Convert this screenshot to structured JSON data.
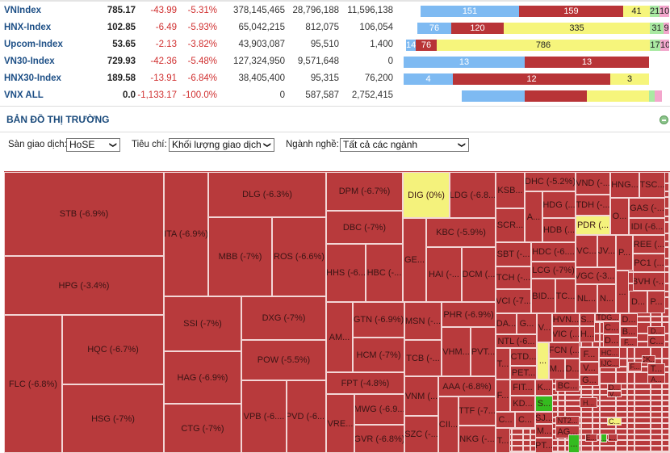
{
  "indices": [
    {
      "name": "VNIndex",
      "value": "785.17",
      "change": "-43.99",
      "pct": "-5.31%",
      "vol1": "378,145,465",
      "vol2": "28,796,188",
      "vol3": "11,596,138",
      "bars": [
        "151",
        "159",
        "41",
        "21",
        "10"
      ]
    },
    {
      "name": "HNX-Index",
      "value": "102.85",
      "change": "-6.49",
      "pct": "-5.93%",
      "vol1": "65,042,215",
      "vol2": "812,075",
      "vol3": "106,054",
      "bars": [
        "76",
        "120",
        "335",
        "31",
        "9"
      ]
    },
    {
      "name": "Upcom-Index",
      "value": "53.65",
      "change": "-2.13",
      "pct": "-3.82%",
      "vol1": "43,903,087",
      "vol2": "95,510",
      "vol3": "1,400",
      "bars": [
        "14",
        "76",
        "786",
        "17",
        "10"
      ]
    },
    {
      "name": "VN30-Index",
      "value": "729.93",
      "change": "-42.36",
      "pct": "-5.48%",
      "vol1": "127,324,950",
      "vol2": "9,571,648",
      "vol3": "0",
      "bars": [
        "13",
        "13"
      ]
    },
    {
      "name": "HNX30-Index",
      "value": "189.58",
      "change": "-13.91",
      "pct": "-6.84%",
      "vol1": "38,405,400",
      "vol2": "95,315",
      "vol3": "76,200",
      "bars": [
        "4",
        "12",
        "3"
      ]
    },
    {
      "name": "VNX ALL",
      "value": "0.0",
      "change": "-1,133.17",
      "pct": "-100.0%",
      "vol1": "0",
      "vol2": "587,587",
      "vol3": "2,752,415",
      "bars": [
        "",
        "",
        "",
        "",
        ""
      ]
    }
  ],
  "bar_colors": {
    "ceiling": "#f3a6cc",
    "up": "#a9e9a2",
    "unchanged": "#f6f57c",
    "down": "#b83437",
    "floor": "#7ebaf2"
  },
  "section": {
    "title": "BẢN ĐỒ THỊ TRƯỜNG",
    "collapse_icon": "minus-circle-icon"
  },
  "filters": {
    "exchange_label": "Sàn giao dịch:",
    "exchange_value": "HoSE",
    "criteria_label": "Tiêu chí:",
    "criteria_value": "Khối lượng giao dịch",
    "sector_label": "Ngành nghề:",
    "sector_value": "Tất cả các ngành"
  },
  "tile_colors": {
    "down": "#b83a3c",
    "flat": "#f4f27c",
    "up": "#35bb1f"
  },
  "treemap": [
    {
      "label": "STB (-6.9%)",
      "s": "down"
    },
    {
      "label": "HPG (-3.4%)",
      "s": "down"
    },
    {
      "label": "FLC (-6.8%)",
      "s": "down"
    },
    {
      "label": "HQC (-6.7%)",
      "s": "down"
    },
    {
      "label": "HSG (-7%)",
      "s": "down"
    },
    {
      "label": "ITA (-6.9%)",
      "s": "down"
    },
    {
      "label": "DLG (-6.3%)",
      "s": "down"
    },
    {
      "label": "MBB (-7%)",
      "s": "down"
    },
    {
      "label": "ROS (-6.6%)",
      "s": "down"
    },
    {
      "label": "SSI (-7%)",
      "s": "down"
    },
    {
      "label": "HAG (-6.9%)",
      "s": "down"
    },
    {
      "label": "CTG (-7%)",
      "s": "down"
    },
    {
      "label": "DXG (-7%)",
      "s": "down"
    },
    {
      "label": "POW (-5.5%)",
      "s": "down"
    },
    {
      "label": "VPB (-6....",
      "s": "down"
    },
    {
      "label": "PVD (-6....",
      "s": "down"
    },
    {
      "label": "DPM (-6.7%)",
      "s": "down"
    },
    {
      "label": "DBC (-7%)",
      "s": "down"
    },
    {
      "label": "HHS (-6...",
      "s": "down"
    },
    {
      "label": "HBC (-...",
      "s": "down"
    },
    {
      "label": "DIG (0%)",
      "s": "flat"
    },
    {
      "label": "LDG (-6.8...",
      "s": "down"
    },
    {
      "label": "GE...",
      "s": "down"
    },
    {
      "label": "KBC (-5.9%)",
      "s": "down"
    },
    {
      "label": "HAI (-...",
      "s": "down"
    },
    {
      "label": "DCM (...",
      "s": "down"
    },
    {
      "label": "AM...",
      "s": "down"
    },
    {
      "label": "GTN (-6.9%)",
      "s": "down"
    },
    {
      "label": "HCM (-7%)",
      "s": "down"
    },
    {
      "label": "FPT (-4.8%)",
      "s": "down"
    },
    {
      "label": "VRE...",
      "s": "down"
    },
    {
      "label": "MWG (-6.9...",
      "s": "down"
    },
    {
      "label": "GVR (-6.8%)",
      "s": "down"
    },
    {
      "label": "MSN (-...",
      "s": "down"
    },
    {
      "label": "TCB (-...",
      "s": "down"
    },
    {
      "label": "VNM (...",
      "s": "down"
    },
    {
      "label": "SZC (-...",
      "s": "down"
    },
    {
      "label": "PHR (-6.9%)",
      "s": "down"
    },
    {
      "label": "VHM...",
      "s": "down"
    },
    {
      "label": "PVT...",
      "s": "down"
    },
    {
      "label": "AAA (-6.8%)",
      "s": "down"
    },
    {
      "label": "CII...",
      "s": "down"
    },
    {
      "label": "TTF (-7...",
      "s": "down"
    },
    {
      "label": "NKG (-...",
      "s": "down"
    },
    {
      "label": "KSB...",
      "s": "down"
    },
    {
      "label": "SCR...",
      "s": "down"
    },
    {
      "label": "A...",
      "s": "down"
    },
    {
      "label": "DHC (-5.2%)",
      "s": "down"
    },
    {
      "label": "HDG (...",
      "s": "down"
    },
    {
      "label": "HDB (...",
      "s": "down"
    },
    {
      "label": "VND (-...",
      "s": "down"
    },
    {
      "label": "TDH (-...",
      "s": "down"
    },
    {
      "label": "PDR (...",
      "s": "flat"
    },
    {
      "label": "O...",
      "s": "down"
    },
    {
      "label": "HNG...",
      "s": "down"
    },
    {
      "label": "TSC...",
      "s": "down"
    },
    {
      "label": "GAS (-...",
      "s": "down"
    },
    {
      "label": "IDI (-6...",
      "s": "down"
    },
    {
      "label": "SBT (-...",
      "s": "down"
    },
    {
      "label": "TCH (-...",
      "s": "down"
    },
    {
      "label": "VCI (-7...",
      "s": "down"
    },
    {
      "label": "HDC (-6....",
      "s": "down"
    },
    {
      "label": "LCG (-7%)",
      "s": "down"
    },
    {
      "label": "BID...",
      "s": "down"
    },
    {
      "label": "TC...",
      "s": "down"
    },
    {
      "label": "VC...",
      "s": "down"
    },
    {
      "label": "JV...",
      "s": "down"
    },
    {
      "label": "P...",
      "s": "down"
    },
    {
      "label": "REE (...",
      "s": "down"
    },
    {
      "label": "PC1 (...",
      "s": "down"
    },
    {
      "label": "VGC (-3....",
      "s": "down"
    },
    {
      "label": "BVH (-...",
      "s": "down"
    },
    {
      "label": "NL...",
      "s": "down"
    },
    {
      "label": "N...",
      "s": "down"
    },
    {
      "label": "...",
      "s": "down"
    },
    {
      "label": "D...",
      "s": "down"
    },
    {
      "label": "P...",
      "s": "down"
    },
    {
      "label": "DA...",
      "s": "down"
    },
    {
      "label": "G...",
      "s": "down"
    },
    {
      "label": "V...",
      "s": "down"
    },
    {
      "label": "HVN...",
      "s": "down"
    },
    {
      "label": "VIC (...",
      "s": "down"
    },
    {
      "label": "NTL (-6...",
      "s": "down"
    },
    {
      "label": "...",
      "s": "flat"
    },
    {
      "label": "FCN (...",
      "s": "down"
    },
    {
      "label": "CTD...",
      "s": "down"
    },
    {
      "label": "PET...",
      "s": "down"
    },
    {
      "label": "T...",
      "s": "down"
    },
    {
      "label": "M...",
      "s": "down"
    },
    {
      "label": "D...",
      "s": "down"
    },
    {
      "label": "F...",
      "s": "down"
    },
    {
      "label": "FIT...",
      "s": "down"
    },
    {
      "label": "KD...",
      "s": "down"
    },
    {
      "label": "K...",
      "s": "down"
    },
    {
      "label": "S...",
      "s": "up"
    },
    {
      "label": "BC...",
      "s": "down"
    },
    {
      "label": "C...",
      "s": "down"
    },
    {
      "label": "C...",
      "s": "down"
    },
    {
      "label": "SJ...",
      "s": "down"
    },
    {
      "label": "NT2...",
      "s": "down"
    },
    {
      "label": "M...",
      "s": "down"
    },
    {
      "label": "AG...",
      "s": "down"
    },
    {
      "label": "T...",
      "s": "down"
    },
    {
      "label": "PT...",
      "s": "down"
    },
    {
      "label": "...",
      "s": "up"
    },
    {
      "label": "S...",
      "s": "down"
    },
    {
      "label": "H...",
      "s": "down"
    },
    {
      "label": "TDG...",
      "s": "down"
    },
    {
      "label": "C...",
      "s": "down"
    },
    {
      "label": "D...",
      "s": "down"
    },
    {
      "label": "D...",
      "s": "down"
    },
    {
      "label": "B...",
      "s": "down"
    },
    {
      "label": "F...",
      "s": "down"
    },
    {
      "label": "D...",
      "s": "down"
    },
    {
      "label": "C...",
      "s": "down"
    },
    {
      "label": "HC...",
      "s": "down"
    },
    {
      "label": "IJC...",
      "s": "down"
    },
    {
      "label": "F...",
      "s": "down"
    },
    {
      "label": "V...",
      "s": "down"
    },
    {
      "label": "G...",
      "s": "down"
    },
    {
      "label": "F...",
      "s": "down"
    },
    {
      "label": "CK...",
      "s": "down"
    },
    {
      "label": "T...",
      "s": "down"
    },
    {
      "label": "A...",
      "s": "down"
    },
    {
      "label": "D...",
      "s": "down"
    },
    {
      "label": "V...",
      "s": "down"
    },
    {
      "label": "H...",
      "s": "down"
    },
    {
      "label": "C...",
      "s": "flat"
    },
    {
      "label": "E...",
      "s": "down"
    },
    {
      "label": "...",
      "s": "up"
    },
    {
      "label": "L...",
      "s": "down"
    }
  ]
}
